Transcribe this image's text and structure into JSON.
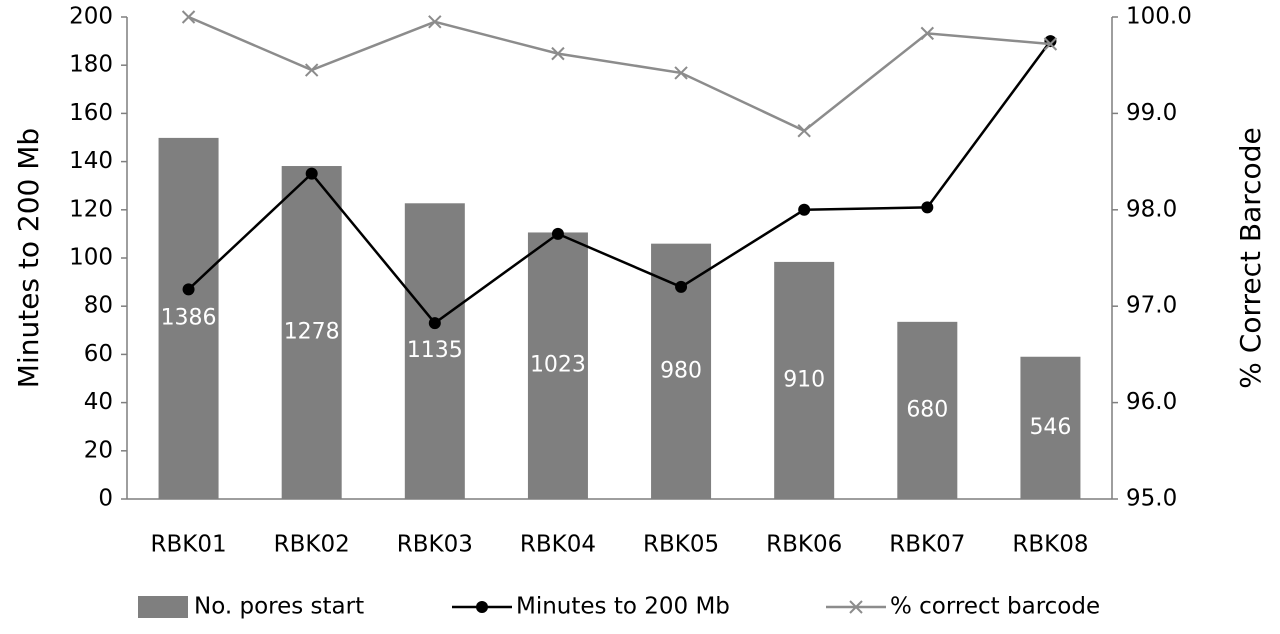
{
  "chart_data": {
    "type": "combo",
    "categories": [
      "RBK01",
      "RBK02",
      "RBK03",
      "RBK04",
      "RBK05",
      "RBK06",
      "RBK07",
      "RBK08"
    ],
    "y_label": "Minutes to 200 Mb",
    "y2_label": "% Correct Barcode",
    "ylim": [
      0,
      200
    ],
    "yticks": [
      0,
      20,
      40,
      60,
      80,
      100,
      120,
      140,
      160,
      180,
      200
    ],
    "y2lim": [
      95,
      100
    ],
    "y2ticks": [
      {
        "value": 95,
        "label": "95.0"
      },
      {
        "value": 96,
        "label": "96.0"
      },
      {
        "value": 97,
        "label": "97.0"
      },
      {
        "value": 98,
        "label": "98.0"
      },
      {
        "value": 99,
        "label": "99.0"
      },
      {
        "value": 100,
        "label": "100.0"
      }
    ],
    "y3lim": [
      0,
      1850
    ],
    "grid": false,
    "legend": "bottom",
    "series": [
      {
        "name": "No. pores start",
        "type": "bar",
        "axis": "y3",
        "color": "#7f7f7f",
        "values": [
          1386,
          1278,
          1135,
          1023,
          980,
          910,
          680,
          546
        ]
      },
      {
        "name": "Minutes to 200 Mb",
        "type": "line",
        "marker": "circle",
        "color": "#000000",
        "values": [
          87,
          135,
          73,
          110,
          88,
          120,
          121,
          190
        ]
      },
      {
        "name": "% correct barcode",
        "type": "line",
        "marker": "x",
        "axis": "y2",
        "color": "#8c8c8c",
        "values": [
          100.0,
          99.45,
          99.95,
          99.62,
          99.42,
          98.82,
          99.83,
          99.72
        ]
      }
    ]
  }
}
